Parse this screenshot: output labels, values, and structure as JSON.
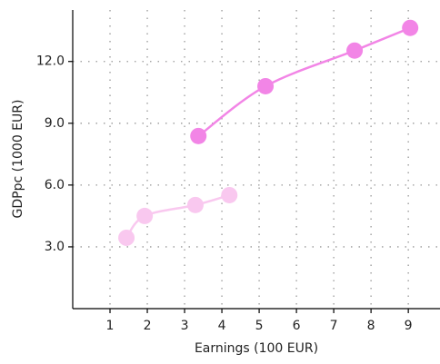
{
  "chart_data": {
    "type": "line",
    "x_label": "Earnings (100 EUR)",
    "y_label": "GDPpc (1000 EUR)",
    "series": [
      {
        "color": "#f9c8ef",
        "x": [
          1.44,
          1.93,
          3.29,
          4.2
        ],
        "values": [
          3.44,
          4.5,
          5.03,
          5.51
        ]
      },
      {
        "color": "#f285e6",
        "x": [
          3.37,
          5.17,
          7.56,
          9.05
        ],
        "values": [
          8.38,
          10.8,
          12.53,
          13.63
        ]
      }
    ],
    "xlim": [
      0,
      9.85
    ],
    "xticks": [
      1,
      2,
      3,
      4,
      5,
      6,
      7,
      8,
      9
    ],
    "ylim": [
      0,
      14.5
    ],
    "yticks": [
      {
        "value": 3,
        "label": "3.0"
      },
      {
        "value": 6,
        "label": "6.0"
      },
      {
        "value": 9,
        "label": "9.0"
      },
      {
        "value": 12,
        "label": "12.0"
      }
    ],
    "grid": true
  }
}
